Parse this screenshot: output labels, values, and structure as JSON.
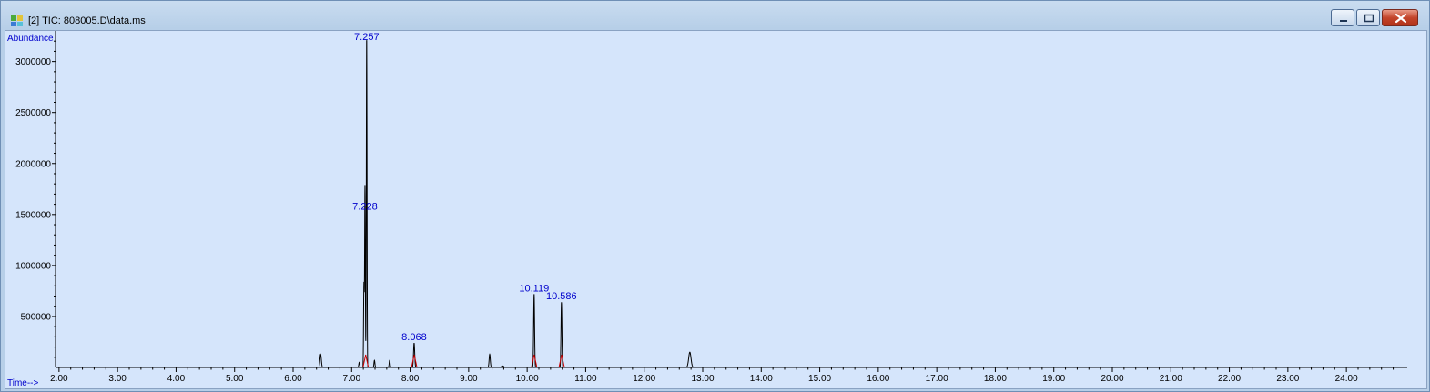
{
  "window": {
    "title": "[2] TIC: 808005.D\\data.ms",
    "icon": "chromatogram-app-icon",
    "buttons": [
      "minimize",
      "maximize",
      "close"
    ]
  },
  "colors": {
    "background": "#d5e5fb",
    "trace": "#000000",
    "label": "#0000cc",
    "integration": "#cc0000"
  },
  "chart_data": {
    "type": "line",
    "ylabel": "Abundance",
    "xlabel": "Time-->",
    "xlim": [
      1.94,
      25.04
    ],
    "ylim": [
      0,
      3300000
    ],
    "x_ticks": [
      2.0,
      3.0,
      4.0,
      5.0,
      6.0,
      7.0,
      8.0,
      9.0,
      10.0,
      11.0,
      12.0,
      13.0,
      14.0,
      15.0,
      16.0,
      17.0,
      18.0,
      19.0,
      20.0,
      21.0,
      22.0,
      23.0,
      24.0
    ],
    "x_tick_labels": [
      "2.00",
      "3.00",
      "4.00",
      "5.00",
      "6.00",
      "7.00",
      "8.00",
      "9.00",
      "10.00",
      "11.00",
      "12.00",
      "13.00",
      "14.00",
      "15.00",
      "16.00",
      "17.00",
      "18.00",
      "19.00",
      "20.00",
      "21.00",
      "22.00",
      "23.00",
      "24.00"
    ],
    "y_ticks": [
      500000,
      1000000,
      1500000,
      2000000,
      2500000,
      3000000
    ],
    "y_tick_labels": [
      "500000",
      "1000000",
      "1500000",
      "2000000",
      "2500000",
      "3000000"
    ],
    "grid": false,
    "peaks": [
      {
        "rt": 6.47,
        "height": 130000,
        "width": 0.012
      },
      {
        "rt": 7.13,
        "height": 50000,
        "width": 0.008
      },
      {
        "rt": 7.21,
        "height": 820000,
        "width": 0.006
      },
      {
        "rt": 7.228,
        "height": 1780000,
        "width": 0.006
      },
      {
        "rt": 7.257,
        "height": 3250000,
        "width": 0.006
      },
      {
        "rt": 7.39,
        "height": 70000,
        "width": 0.008
      },
      {
        "rt": 7.65,
        "height": 70000,
        "width": 0.008
      },
      {
        "rt": 8.068,
        "height": 240000,
        "width": 0.01
      },
      {
        "rt": 9.36,
        "height": 130000,
        "width": 0.01
      },
      {
        "rt": 9.58,
        "height": 15000,
        "width": 0.02
      },
      {
        "rt": 10.119,
        "height": 720000,
        "width": 0.008
      },
      {
        "rt": 10.586,
        "height": 640000,
        "width": 0.008
      },
      {
        "rt": 12.78,
        "height": 150000,
        "width": 0.02
      }
    ],
    "peak_labels": [
      {
        "text": "7.257",
        "rt": 7.257,
        "y": 3250000
      },
      {
        "text": "7.228",
        "rt": 7.228,
        "y": 1520000
      },
      {
        "text": "8.068",
        "rt": 8.068,
        "y": 240000
      },
      {
        "text": "10.119",
        "rt": 10.119,
        "y": 720000
      },
      {
        "text": "10.586",
        "rt": 10.586,
        "y": 640000
      }
    ],
    "integration_marks": [
      7.24,
      8.07,
      10.12,
      10.59
    ]
  }
}
